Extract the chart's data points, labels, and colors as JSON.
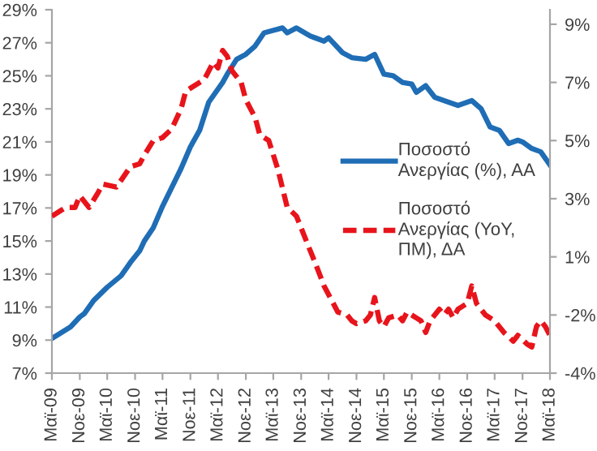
{
  "chart_data": {
    "type": "line",
    "series": [
      {
        "name": "Ποσοστό\nΑνεργίας (%), ΑΑ",
        "color": "#1f6db5",
        "line_style": "solid",
        "x": [
          "2009-05",
          "2009-09",
          "2009-11",
          "2009-12",
          "2010-02",
          "2010-05",
          "2010-08",
          "2010-10",
          "2010-12",
          "2011-01",
          "2011-03",
          "2011-05",
          "2011-09",
          "2011-11",
          "2012-01",
          "2012-03",
          "2012-06",
          "2012-07",
          "2012-09",
          "2012-11",
          "2013-01",
          "2013-03",
          "2013-07",
          "2013-08",
          "2013-10",
          "2014-01",
          "2014-02",
          "2014-04",
          "2014-05",
          "2014-08",
          "2014-10",
          "2015-01",
          "2015-03",
          "2015-05",
          "2015-07",
          "2015-09",
          "2015-11",
          "2015-12",
          "2016-02",
          "2016-04",
          "2016-06",
          "2016-09",
          "2016-12",
          "2017-02",
          "2017-04",
          "2017-06",
          "2017-08",
          "2017-10",
          "2017-11",
          "2018-01",
          "2018-03",
          "2018-05"
        ],
        "values": [
          9.1,
          9.8,
          10.4,
          10.6,
          11.4,
          12.2,
          12.9,
          13.7,
          14.4,
          15.0,
          15.8,
          17.1,
          19.4,
          20.7,
          21.7,
          23.4,
          24.6,
          25.1,
          26.0,
          26.3,
          26.8,
          27.6,
          27.9,
          27.6,
          27.9,
          27.4,
          27.3,
          27.1,
          27.3,
          26.4,
          26.1,
          26.0,
          26.3,
          25.1,
          25.0,
          24.6,
          24.5,
          24.0,
          24.4,
          23.7,
          23.5,
          23.2,
          23.5,
          23.0,
          21.9,
          21.7,
          20.9,
          21.1,
          21.0,
          20.6,
          20.4,
          19.6
        ]
      },
      {
        "name": "Ποσοστό\nΑνεργίας (YoY,\nΠΜ), ΔΑ",
        "color": "#e8141b",
        "line_style": "dashed",
        "axis": "y2",
        "x": [
          "2009-05",
          "2009-07",
          "2009-08",
          "2009-10",
          "2009-11",
          "2010-01",
          "2010-03",
          "2010-04",
          "2010-07",
          "2010-10",
          "2010-12",
          "2011-01",
          "2011-03",
          "2011-05",
          "2011-07",
          "2011-09",
          "2011-10",
          "2011-12",
          "2012-02",
          "2012-04",
          "2012-05",
          "2012-06",
          "2012-07",
          "2012-08",
          "2012-10",
          "2012-11",
          "2012-12",
          "2013-01",
          "2013-02",
          "2013-04",
          "2013-06",
          "2013-08",
          "2013-10",
          "2013-12",
          "2014-02",
          "2014-04",
          "2014-06",
          "2014-07",
          "2014-09",
          "2014-10",
          "2014-11",
          "2015-01",
          "2015-02",
          "2015-03",
          "2015-04",
          "2015-05",
          "2015-06",
          "2015-08",
          "2015-09",
          "2015-10",
          "2015-12",
          "2016-01",
          "2016-02",
          "2016-03",
          "2016-05",
          "2016-06",
          "2016-07",
          "2016-08",
          "2016-09",
          "2016-11",
          "2016-12",
          "2017-01",
          "2017-03",
          "2017-05",
          "2017-07",
          "2017-09",
          "2017-10",
          "2017-12",
          "2018-01",
          "2018-02",
          "2018-03",
          "2018-04",
          "2018-05"
        ],
        "values": [
          1.9,
          2.1,
          2.2,
          2.2,
          2.6,
          2.2,
          2.7,
          3.0,
          2.9,
          3.6,
          3.7,
          4.0,
          4.5,
          4.6,
          4.9,
          5.6,
          6.2,
          6.4,
          6.6,
          7.2,
          7.0,
          7.6,
          7.4,
          6.9,
          6.5,
          5.9,
          5.6,
          5.3,
          4.7,
          4.5,
          3.5,
          2.2,
          1.9,
          1.1,
          0.3,
          -0.5,
          -1.1,
          -1.4,
          -1.5,
          -1.7,
          -1.8,
          -1.7,
          -1.5,
          -0.9,
          -1.7,
          -1.9,
          -1.6,
          -1.5,
          -1.7,
          -1.4,
          -1.6,
          -1.7,
          -2.1,
          -1.7,
          -1.3,
          -1.5,
          -1.3,
          -1.6,
          -1.3,
          -1.1,
          -0.5,
          -1.1,
          -1.5,
          -1.7,
          -2.1,
          -2.4,
          -2.2,
          -2.5,
          -2.6,
          -1.9,
          -1.7,
          -1.9,
          -2.2
        ]
      }
    ],
    "xlim": [
      "2009-05",
      "2018-05"
    ],
    "xticks": [
      {
        "value": "2009-05",
        "label": "Μαϊ-09"
      },
      {
        "value": "2009-11",
        "label": "Νοε-09"
      },
      {
        "value": "2010-05",
        "label": "Μαϊ-10"
      },
      {
        "value": "2010-11",
        "label": "Νοε-10"
      },
      {
        "value": "2011-05",
        "label": "Μαϊ-11"
      },
      {
        "value": "2011-11",
        "label": "Νοε-11"
      },
      {
        "value": "2012-05",
        "label": "Μαϊ-12"
      },
      {
        "value": "2012-11",
        "label": "Νοε-12"
      },
      {
        "value": "2013-05",
        "label": "Μαϊ-13"
      },
      {
        "value": "2013-11",
        "label": "Νοε-13"
      },
      {
        "value": "2014-05",
        "label": "Μαϊ-14"
      },
      {
        "value": "2014-11",
        "label": "Νοε-14"
      },
      {
        "value": "2015-05",
        "label": "Μαϊ-15"
      },
      {
        "value": "2015-11",
        "label": "Νοε-15"
      },
      {
        "value": "2016-05",
        "label": "Μαϊ-16"
      },
      {
        "value": "2016-11",
        "label": "Νοε-16"
      },
      {
        "value": "2017-05",
        "label": "Μαϊ-17"
      },
      {
        "value": "2017-11",
        "label": "Νοε-17"
      },
      {
        "value": "2018-05",
        "label": "Μαϊ-18"
      }
    ],
    "ylim": [
      7,
      29
    ],
    "yticks": [
      {
        "value": 7,
        "label": "7%"
      },
      {
        "value": 9,
        "label": "9%"
      },
      {
        "value": 11,
        "label": "11%"
      },
      {
        "value": 13,
        "label": "13%"
      },
      {
        "value": 15,
        "label": "15%"
      },
      {
        "value": 17,
        "label": "17%"
      },
      {
        "value": 19,
        "label": "19%"
      },
      {
        "value": 21,
        "label": "21%"
      },
      {
        "value": 23,
        "label": "23%"
      },
      {
        "value": 25,
        "label": "25%"
      },
      {
        "value": 27,
        "label": "27%"
      },
      {
        "value": 29,
        "label": "29%"
      }
    ],
    "y2lim": [
      -3.5,
      9
    ],
    "y2ticks": [
      {
        "value": -3.5,
        "label": "-4%"
      },
      {
        "value": -1.5,
        "label": "-2%"
      },
      {
        "value": 0.5,
        "label": "1%"
      },
      {
        "value": 2.5,
        "label": "3%"
      },
      {
        "value": 4.5,
        "label": "5%"
      },
      {
        "value": 6.5,
        "label": "7%"
      },
      {
        "value": 8.5,
        "label": "9%"
      }
    ],
    "legend": "right"
  }
}
